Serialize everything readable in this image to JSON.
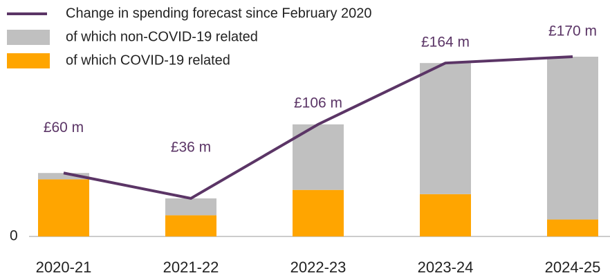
{
  "chart_data": {
    "type": "bar",
    "categories": [
      "2020-21",
      "2021-22",
      "2022-23",
      "2023-24",
      "2024-25"
    ],
    "series": [
      {
        "name": "Change in spending forecast since February 2020",
        "type": "line",
        "color": "#5b3566",
        "values": [
          60,
          36,
          106,
          164,
          170
        ],
        "value_labels": [
          "£60 m",
          "£36 m",
          "£106 m",
          "£164 m",
          "£170 m"
        ]
      },
      {
        "name": "of which non-COVID-19 related",
        "type": "bar",
        "color": "#c0c0c0",
        "values": [
          6,
          16,
          62,
          124,
          154
        ]
      },
      {
        "name": "of which COVID-19 related",
        "type": "bar",
        "color": "#ffa500",
        "values": [
          54,
          20,
          44,
          40,
          16
        ]
      }
    ],
    "stacked": true,
    "ylim": [
      0,
      204
    ],
    "yticks": [
      0
    ]
  }
}
